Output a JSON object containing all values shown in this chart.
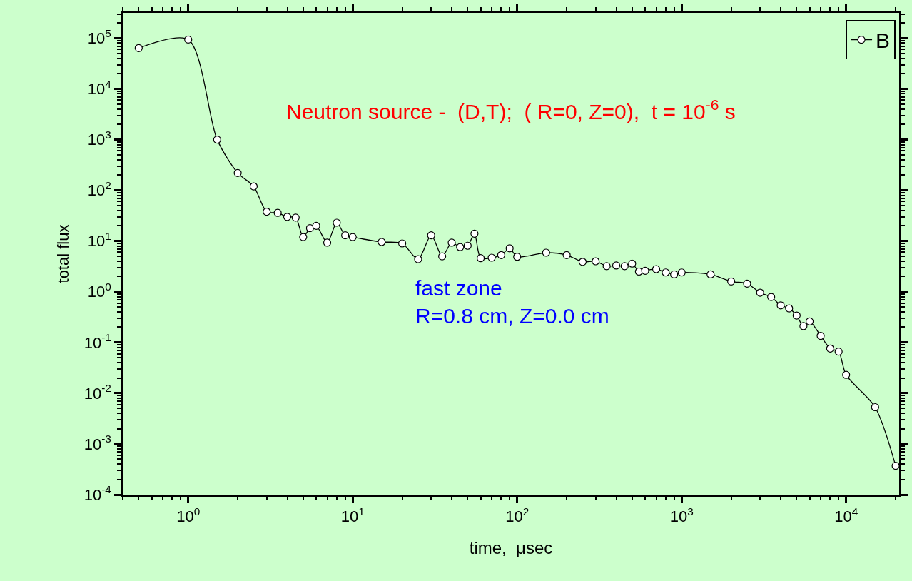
{
  "chart_data": {
    "type": "line",
    "xlabel": "time,  μsec",
    "ylabel": "total flux",
    "log": "xy",
    "xlim": [
      0.4,
      21000
    ],
    "ylim": [
      0.0001,
      316000
    ],
    "xticks": [
      {
        "value": 1,
        "label": "10$^{0}$"
      },
      {
        "value": 10,
        "label": "10$^{1}$"
      },
      {
        "value": 100,
        "label": "10$^{2}$"
      },
      {
        "value": 1000,
        "label": "10$^{3}$"
      },
      {
        "value": 10000,
        "label": "10$^{4}$"
      }
    ],
    "yticks": [
      {
        "value": 0.0001,
        "label": "10$^{-4}$"
      },
      {
        "value": 0.001,
        "label": "10$^{-3}$"
      },
      {
        "value": 0.01,
        "label": "10$^{-2}$"
      },
      {
        "value": 0.1,
        "label": "10$^{-1}$"
      },
      {
        "value": 1,
        "label": "10$^{0}$"
      },
      {
        "value": 10,
        "label": "10$^{1}$"
      },
      {
        "value": 100,
        "label": "10$^{2}$"
      },
      {
        "value": 1000,
        "label": "10$^{3}$"
      },
      {
        "value": 10000,
        "label": "10$^{4}$"
      },
      {
        "value": 100000,
        "label": "10$^{5}$"
      }
    ],
    "x": [
      0.5,
      1,
      1.5,
      2,
      2.5,
      3,
      3.5,
      4,
      4.5,
      5,
      5.5,
      6,
      7,
      8,
      9,
      10,
      15,
      20,
      25,
      30,
      35,
      40,
      45,
      50,
      55,
      60,
      70,
      80,
      90,
      100,
      150,
      200,
      250,
      300,
      350,
      400,
      450,
      500,
      550,
      600,
      700,
      800,
      900,
      1000,
      1500,
      2000,
      2500,
      3000,
      3500,
      4000,
      4500,
      5000,
      5500,
      6000,
      7000,
      8000,
      9000,
      10000,
      15000,
      20000
    ],
    "series": [
      {
        "name": "B",
        "color": "#000000",
        "values": [
          64000,
          94000,
          1000,
          220,
          120,
          38,
          36,
          30,
          29,
          12,
          18,
          20,
          9.3,
          23,
          13,
          12,
          9.6,
          9,
          4.4,
          13,
          5,
          9.3,
          7.6,
          8.1,
          14,
          4.6,
          4.7,
          5.3,
          7.2,
          4.9,
          5.9,
          5.3,
          3.9,
          4,
          3.2,
          3.3,
          3.2,
          3.6,
          2.5,
          2.6,
          2.8,
          2.4,
          2.2,
          2.4,
          2.2,
          1.6,
          1.45,
          0.96,
          0.79,
          0.54,
          0.47,
          0.34,
          0.21,
          0.26,
          0.135,
          0.076,
          0.066,
          0.023,
          0.0053,
          0.00037
        ]
      }
    ],
    "marker": "circle",
    "line_style": "solid",
    "legend": "top right",
    "grid": false,
    "annotations": [
      "Neutron source -  (D,T);  ( R=0, Z=0),  t = 10$^{-6}$ s",
      "fast zone\nR=0.8 cm, Z=0.0 cm"
    ]
  }
}
